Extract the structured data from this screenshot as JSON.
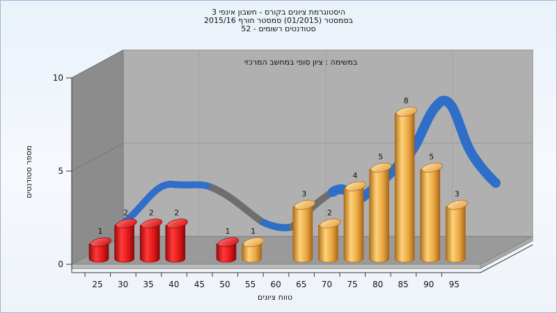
{
  "header": {
    "line1": "היסטוגרמת ציונים בקורס - חשבון אינפי 3",
    "line2": "בסמסטר  (01/2015)  סמסטר חורף 2015/16",
    "line3": "סטודנטים רשומים - 52"
  },
  "chart_data": {
    "type": "bar",
    "subtitle": "במשימה : ציון סופי במחשב המרכזי",
    "xlabel": "טווח ציונים",
    "ylabel": "מספר סטודנטים",
    "categories": [
      "25",
      "30",
      "35",
      "40",
      "45",
      "50",
      "55",
      "60",
      "65",
      "70",
      "75",
      "80",
      "85",
      "90",
      "95"
    ],
    "values": [
      1,
      2,
      2,
      2,
      0,
      1,
      1,
      0,
      3,
      2,
      4,
      5,
      8,
      5,
      3
    ],
    "data_labels": [
      "1",
      "2",
      "2",
      "2",
      "",
      "1",
      "1",
      "",
      "3",
      "2",
      "4",
      "5",
      "8",
      "5",
      "3"
    ],
    "bar_colors": [
      "red",
      "red",
      "red",
      "red",
      "",
      "red",
      "orange",
      "",
      "orange",
      "orange",
      "orange",
      "orange",
      "orange",
      "orange",
      "orange"
    ],
    "yticks": [
      "0",
      "5",
      "10"
    ],
    "ylim": [
      0,
      10
    ],
    "trend_line": true,
    "colors": {
      "red_bar": "#e01818",
      "orange_bar": "#e8a640",
      "trend_blue": "#2f6fc9",
      "trend_gray": "#707070",
      "wall": "#b0b0b0",
      "side_wall": "#8c8c8c"
    }
  }
}
